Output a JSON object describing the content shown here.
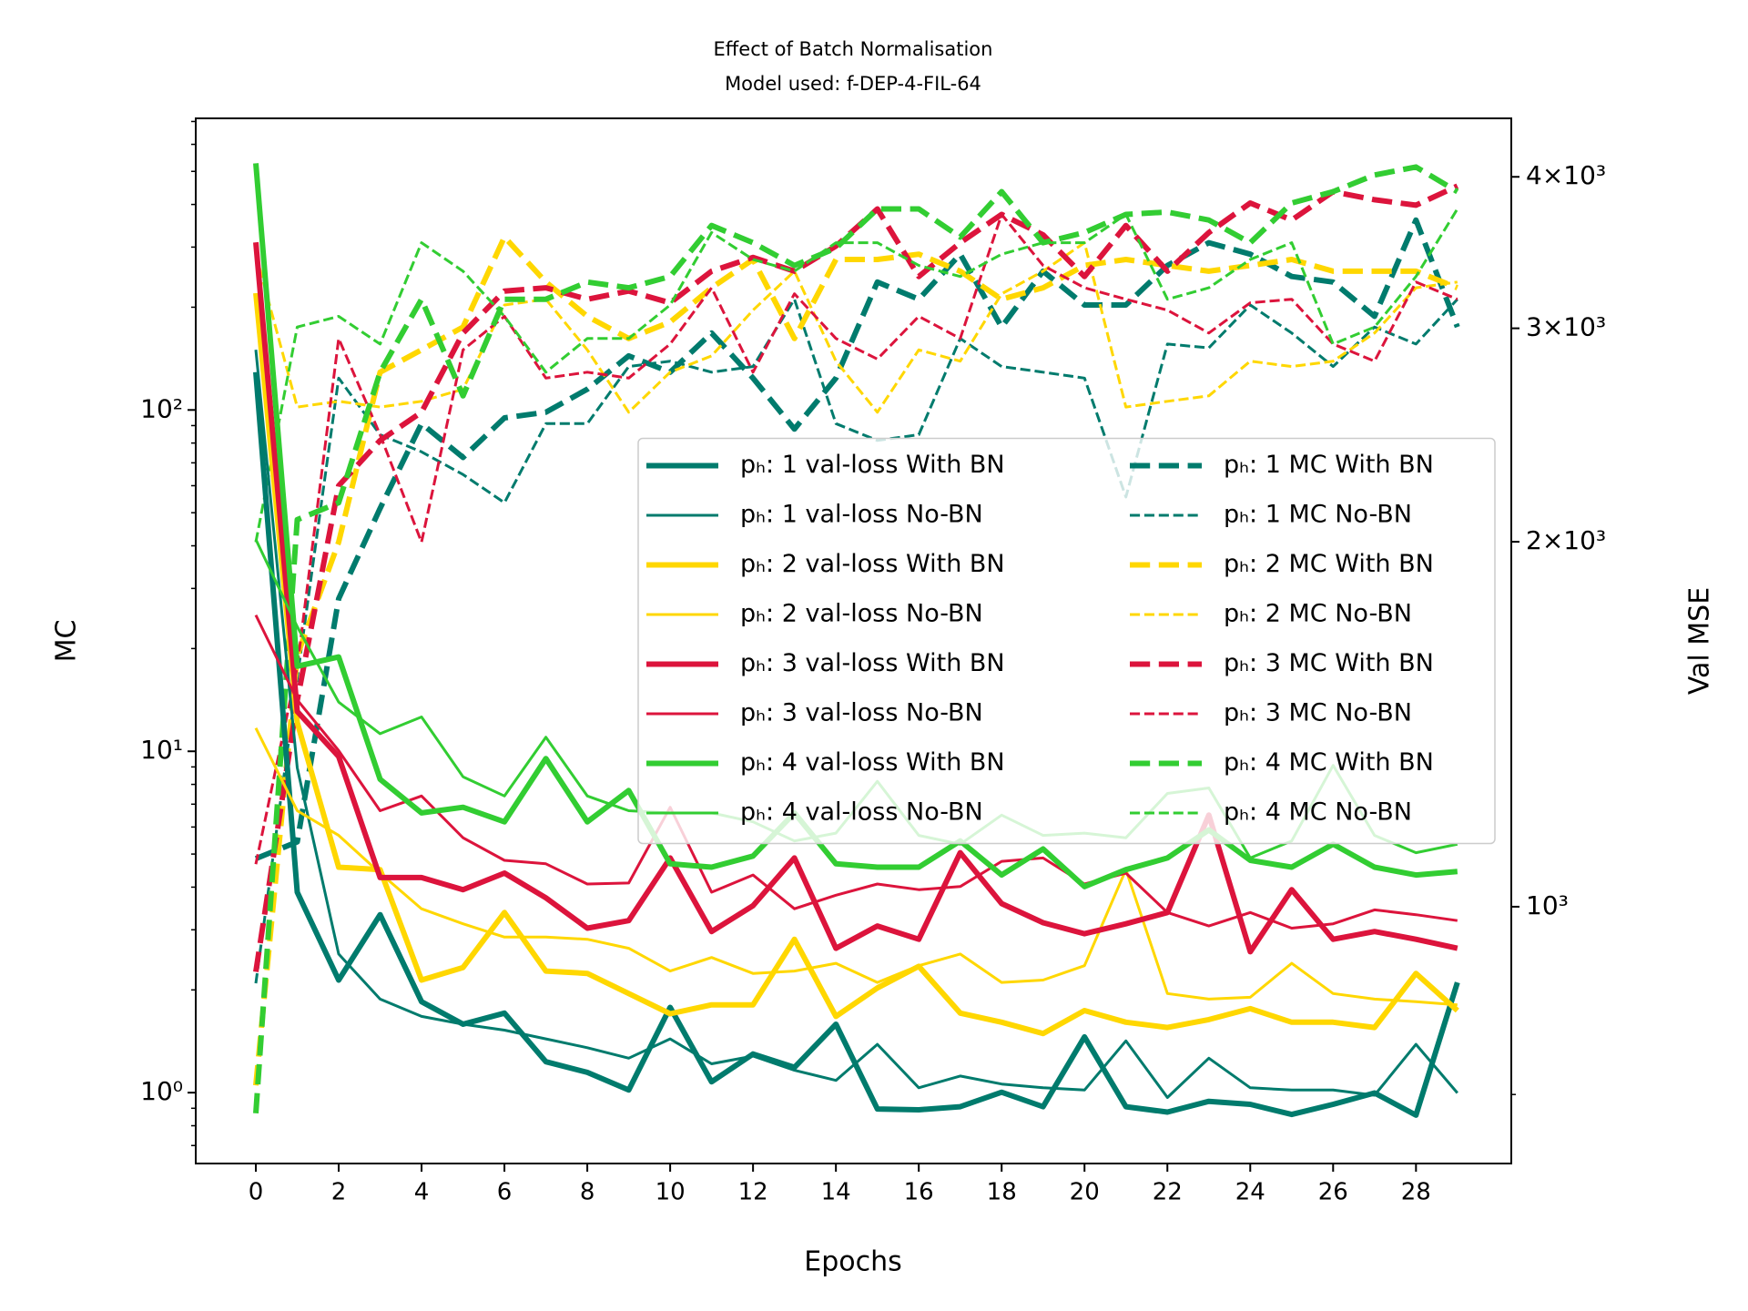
{
  "chart_data": {
    "type": "line",
    "title": "Effect of Batch Normalisation",
    "subtitle": "Model used: f-DEP-4-FIL-64",
    "xlabel": "Epochs",
    "ylabel": "MC",
    "y2label": "Val MSE",
    "x": [
      0,
      1,
      2,
      3,
      4,
      5,
      6,
      7,
      8,
      9,
      10,
      11,
      12,
      13,
      14,
      15,
      16,
      17,
      18,
      19,
      20,
      21,
      22,
      23,
      24,
      25,
      26,
      27,
      28,
      29
    ],
    "xlim": [
      -1.45,
      30.3
    ],
    "xticks": [
      0,
      2,
      4,
      6,
      8,
      10,
      12,
      14,
      16,
      18,
      20,
      22,
      24,
      26,
      28
    ],
    "yscale": "log",
    "ylim": [
      0.62,
      715
    ],
    "yticks": [
      {
        "value": 1,
        "label": "10⁰"
      },
      {
        "value": 10,
        "label": "10¹"
      },
      {
        "value": 100,
        "label": "10²"
      }
    ],
    "yminorticks": [
      0.7,
      0.8,
      0.9,
      2,
      3,
      4,
      5,
      6,
      7,
      8,
      9,
      20,
      30,
      40,
      50,
      60,
      70,
      80,
      90,
      200,
      300,
      400,
      500,
      600,
      700
    ],
    "y2scale": "log",
    "y2lim": [
      614,
      4470
    ],
    "y2ticks": [
      {
        "value": 1000,
        "label": "10³"
      },
      {
        "value": 2000,
        "label": "2×10³"
      },
      {
        "value": 3000,
        "label": "3×10³"
      },
      {
        "value": 4000,
        "label": "4×10³"
      }
    ],
    "y2minorticks": [
      700
    ],
    "legend": "center right",
    "series": [
      {
        "name": "pₕ: 1 val-loss With BN",
        "color": "#007b6d",
        "linestyle": "solid",
        "linewidth": 3,
        "axis": "y2",
        "values": [
          2760,
          1028,
          870,
          985,
          835,
          800,
          817,
          745,
          730,
          706,
          826,
          717,
          756,
          737,
          800,
          681,
          680,
          684,
          703,
          684,
          781,
          684,
          677,
          691,
          687,
          674,
          687,
          702,
          673,
          866
        ]
      },
      {
        "name": "pₕ: 1 val-loss No-BN",
        "color": "#007b6d",
        "linestyle": "solid",
        "linewidth": 1.5,
        "axis": "y2",
        "values": [
          2880,
          1302,
          914,
          839,
          812,
          800,
          791,
          778,
          765,
          750,
          778,
          742,
          753,
          733,
          719,
          770,
          709,
          725,
          714,
          709,
          706,
          775,
          696,
          750,
          709,
          706,
          706,
          699,
          770,
          702
        ]
      },
      {
        "name": "pₕ: 2 val-loss With BN",
        "color": "#ffd700",
        "linestyle": "solid",
        "linewidth": 3,
        "axis": "y2",
        "values": [
          3207,
          1419,
          1078,
          1073,
          870,
          891,
          989,
          885,
          881,
          848,
          816,
          830,
          830,
          940,
          812,
          857,
          893,
          817,
          803,
          786,
          821,
          803,
          795,
          807,
          824,
          803,
          803,
          795,
          881,
          821
        ]
      },
      {
        "name": "pₕ: 2 val-loss No-BN",
        "color": "#ffd700",
        "linestyle": "solid",
        "linewidth": 1.5,
        "axis": "y2",
        "values": [
          1404,
          1200,
          1145,
          1066,
          996,
          968,
          944,
          944,
          940,
          924,
          885,
          908,
          881,
          885,
          898,
          866,
          894,
          914,
          866,
          870,
          894,
          1073,
          848,
          839,
          842,
          898,
          848,
          839,
          835,
          830
        ]
      },
      {
        "name": "pₕ: 3 val-loss With BN",
        "color": "#dc143c",
        "linestyle": "solid",
        "linewidth": 3,
        "axis": "y2",
        "values": [
          3532,
          1449,
          1330,
          1057,
          1057,
          1033,
          1066,
          1017,
          960,
          974,
          1097,
          954,
          1002,
          1097,
          924,
          964,
          940,
          1108,
          1006,
          970,
          950,
          968,
          989,
          1190,
          918,
          1033,
          940,
          954,
          940,
          924
        ]
      },
      {
        "name": "pₕ: 3 val-loss No-BN",
        "color": "#dc143c",
        "linestyle": "solid",
        "linewidth": 1.5,
        "axis": "y2",
        "values": [
          1740,
          1481,
          1345,
          1200,
          1234,
          1140,
          1092,
          1085,
          1044,
          1046,
          1208,
          1028,
          1062,
          996,
          1022,
          1044,
          1033,
          1039,
          1090,
          1097,
          1044,
          1066,
          989,
          964,
          989,
          960,
          968,
          994,
          985,
          974
        ]
      },
      {
        "name": "pₕ: 4 val-loss With BN",
        "color": "#32cd32",
        "linestyle": "solid",
        "linewidth": 3,
        "axis": "y2",
        "values": [
          4104,
          1579,
          1607,
          1274,
          1195,
          1208,
          1175,
          1325,
          1175,
          1247,
          1085,
          1078,
          1101,
          1195,
          1085,
          1078,
          1078,
          1133,
          1062,
          1116,
          1039,
          1073,
          1097,
          1157,
          1092,
          1078,
          1126,
          1078,
          1062,
          1069
        ]
      },
      {
        "name": "pₕ: 4 val-loss No-BN",
        "color": "#32cd32",
        "linestyle": "solid",
        "linewidth": 1.5,
        "axis": "y2",
        "values": [
          2009,
          1702,
          1475,
          1389,
          1434,
          1280,
          1234,
          1380,
          1234,
          1200,
          1195,
          1195,
          1175,
          1133,
          1150,
          1269,
          1145,
          1126,
          1190,
          1145,
          1150,
          1140,
          1240,
          1253,
          1097,
          1133,
          1308,
          1145,
          1108,
          1126
        ]
      },
      {
        "name": "pₕ: 1 MC With BN",
        "color": "#007b6d",
        "linestyle": "dashed",
        "linewidth": 3,
        "values": [
          4.85,
          5.43,
          28.0,
          51.5,
          91.2,
          72.6,
          94.8,
          98.5,
          115,
          144,
          129,
          168,
          124,
          87.9,
          124,
          237,
          211,
          286,
          175,
          255,
          203,
          203,
          265,
          309,
          286,
          246,
          237,
          188,
          360,
          175
        ]
      },
      {
        "name": "pₕ: 1 MC No-BN",
        "color": "#007b6d",
        "linestyle": "dashed",
        "linewidth": 1.5,
        "values": [
          2.09,
          16.4,
          124,
          84.6,
          75.4,
          64.7,
          53.5,
          91.2,
          91.2,
          134,
          139,
          129,
          134,
          211,
          91.2,
          81.4,
          84.6,
          162,
          134,
          129,
          124,
          55.6,
          156,
          152,
          203,
          168,
          134,
          175,
          156,
          211
        ]
      },
      {
        "name": "pₕ: 2 MC With BN",
        "color": "#ffd700",
        "linestyle": "dashed",
        "linewidth": 3,
        "values": [
          1.05,
          19.1,
          41.0,
          129,
          150,
          175,
          321,
          237,
          188,
          162,
          181,
          228,
          276,
          162,
          276,
          276,
          286,
          255,
          211,
          228,
          265,
          276,
          265,
          255,
          265,
          276,
          255,
          255,
          255,
          228
        ]
      },
      {
        "name": "pₕ: 2 MC No-BN",
        "color": "#ffd700",
        "linestyle": "dashed",
        "linewidth": 1.5,
        "values": [
          286,
          102,
          106,
          102,
          106,
          115,
          203,
          211,
          150,
          98.5,
          129,
          144,
          196,
          255,
          139,
          98.5,
          150,
          139,
          219,
          255,
          309,
          102,
          106,
          110,
          139,
          134,
          139,
          168,
          228,
          237
        ]
      },
      {
        "name": "pₕ: 3 MC With BN",
        "color": "#dc143c",
        "linestyle": "dashed",
        "linewidth": 3,
        "values": [
          2.26,
          14.1,
          60.0,
          81.4,
          98.5,
          168,
          223,
          228,
          211,
          223,
          206,
          255,
          280,
          255,
          302,
          388,
          246,
          309,
          374,
          326,
          246,
          347,
          255,
          331,
          404,
          360,
          436,
          413,
          398,
          453
        ]
      },
      {
        "name": "pₕ: 3 MC No-BN",
        "color": "#dc143c",
        "linestyle": "dashed",
        "linewidth": 1.5,
        "values": [
          4.67,
          17.7,
          162,
          84.6,
          41.0,
          150,
          188,
          124,
          129,
          124,
          156,
          228,
          129,
          219,
          162,
          141,
          188,
          162,
          374,
          265,
          228,
          211,
          196,
          168,
          206,
          211,
          156,
          139,
          237,
          211
        ]
      },
      {
        "name": "pₕ: 4 MC With BN",
        "color": "#32cd32",
        "linestyle": "dashed",
        "linewidth": 3,
        "values": [
          0.87,
          47.7,
          53.5,
          129,
          211,
          110,
          211,
          211,
          237,
          228,
          246,
          347,
          309,
          265,
          298,
          388,
          388,
          321,
          436,
          309,
          331,
          374,
          380,
          360,
          309,
          404,
          436,
          488,
          515,
          436
        ]
      },
      {
        "name": "pₕ: 4 MC No-BN",
        "color": "#32cd32",
        "linestyle": "dashed",
        "linewidth": 1.5,
        "values": [
          41.0,
          175,
          188,
          156,
          309,
          255,
          188,
          129,
          162,
          162,
          203,
          331,
          276,
          255,
          309,
          309,
          265,
          246,
          286,
          309,
          309,
          374,
          211,
          228,
          276,
          309,
          156,
          175,
          246,
          388
        ]
      }
    ]
  }
}
